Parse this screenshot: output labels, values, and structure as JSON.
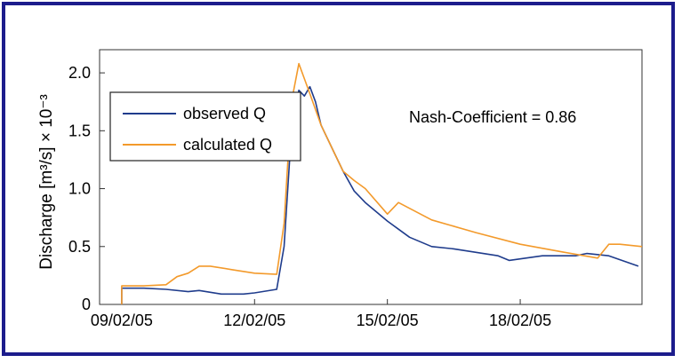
{
  "chart_data": {
    "type": "line",
    "title": "",
    "xlabel": "",
    "ylabel": "Discharge [m³/s] × 10⁻³",
    "ylim": [
      0,
      2.2
    ],
    "xlim": [
      "08/02/05 12:00",
      "20/02/05 18:00"
    ],
    "y_ticks": [
      "0",
      "0.5",
      "1.0",
      "1.5",
      "2.0"
    ],
    "x_ticks": [
      "09/02/05",
      "12/02/05",
      "15/02/05",
      "18/02/05"
    ],
    "grid": false,
    "legend_position": "top-left",
    "annotation": "Nash-Coefficient = 0.86",
    "series": [
      {
        "name": "observed Q",
        "color": "#1f3c8c",
        "x": [
          "09/02/05 00:00",
          "09/02/05 00:00",
          "09/02/05 12:00",
          "10/02/05 00:00",
          "10/02/05 12:00",
          "10/02/05 18:00",
          "11/02/05 06:00",
          "11/02/05 18:00",
          "12/02/05 00:00",
          "12/02/05 12:00",
          "12/02/05 16:00",
          "12/02/05 20:00",
          "13/02/05 00:00",
          "13/02/05 03:00",
          "13/02/05 06:00",
          "13/02/05 09:00",
          "13/02/05 12:00",
          "13/02/05 18:00",
          "14/02/05 00:00",
          "14/02/05 06:00",
          "14/02/05 12:00",
          "14/02/05 18:00",
          "15/02/05 00:00",
          "15/02/05 06:00",
          "15/02/05 12:00",
          "16/02/05 00:00",
          "16/02/05 12:00",
          "17/02/05 00:00",
          "17/02/05 12:00",
          "17/02/05 18:00",
          "18/02/05 12:00",
          "19/02/05 06:00",
          "19/02/05 12:00",
          "20/02/05 00:00",
          "20/02/05 16:00"
        ],
        "values": [
          0.0,
          0.14,
          0.14,
          0.13,
          0.11,
          0.12,
          0.09,
          0.09,
          0.1,
          0.13,
          0.5,
          1.5,
          1.85,
          1.8,
          1.88,
          1.75,
          1.55,
          1.35,
          1.15,
          0.98,
          0.88,
          0.8,
          0.72,
          0.65,
          0.58,
          0.5,
          0.48,
          0.45,
          0.42,
          0.38,
          0.42,
          0.42,
          0.44,
          0.42,
          0.33
        ]
      },
      {
        "name": "calculated Q",
        "color": "#f39a2b",
        "x": [
          "09/02/05 00:00",
          "09/02/05 00:00",
          "09/02/05 12:00",
          "10/02/05 00:00",
          "10/02/05 06:00",
          "10/02/05 12:00",
          "10/02/05 18:00",
          "11/02/05 00:00",
          "11/02/05 12:00",
          "12/02/05 00:00",
          "12/02/05 12:00",
          "12/02/05 16:00",
          "12/02/05 20:00",
          "13/02/05 00:00",
          "13/02/05 03:00",
          "13/02/05 06:00",
          "13/02/05 12:00",
          "13/02/05 18:00",
          "14/02/05 00:00",
          "14/02/05 06:00",
          "14/02/05 12:00",
          "15/02/05 00:00",
          "15/02/05 06:00",
          "16/02/05 00:00",
          "17/02/05 00:00",
          "18/02/05 00:00",
          "19/02/05 00:00",
          "19/02/05 18:00",
          "20/02/05 00:00",
          "20/02/05 06:00",
          "20/02/05 18:00"
        ],
        "values": [
          0.0,
          0.16,
          0.16,
          0.17,
          0.24,
          0.27,
          0.33,
          0.33,
          0.3,
          0.27,
          0.26,
          0.7,
          1.75,
          2.08,
          1.95,
          1.82,
          1.55,
          1.35,
          1.15,
          1.07,
          1.0,
          0.78,
          0.88,
          0.73,
          0.62,
          0.52,
          0.45,
          0.4,
          0.52,
          0.52,
          0.5
        ]
      }
    ]
  }
}
